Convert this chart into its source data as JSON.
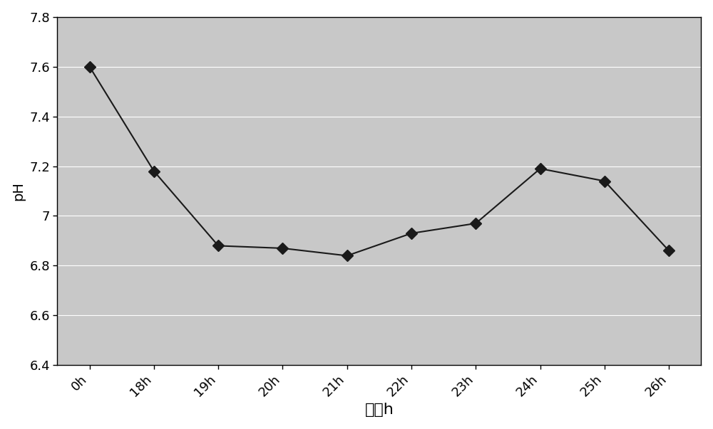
{
  "x_labels": [
    "0h",
    "18h",
    "19h",
    "20h",
    "21h",
    "22h",
    "23h",
    "24h",
    "25h",
    "26h"
  ],
  "x_positions": [
    0,
    1,
    2,
    3,
    4,
    5,
    6,
    7,
    8,
    9
  ],
  "y_values": [
    7.6,
    7.18,
    6.88,
    6.87,
    6.84,
    6.93,
    6.97,
    7.19,
    7.14,
    6.86
  ],
  "ylim": [
    6.4,
    7.8
  ],
  "yticks": [
    6.4,
    6.6,
    6.8,
    7.0,
    7.2,
    7.4,
    7.6,
    7.8
  ],
  "xlabel": "时间h",
  "ylabel": "pH",
  "line_color": "#1a1a1a",
  "marker": "D",
  "marker_size": 8,
  "marker_facecolor": "#1a1a1a",
  "linewidth": 1.5,
  "background_color": "#c8c8c8",
  "figure_bg": "#ffffff",
  "grid_color": "#ffffff",
  "xlabel_fontsize": 16,
  "ylabel_fontsize": 14,
  "tick_fontsize": 13,
  "ytick_labels": [
    "6.4",
    "6.6",
    "6.8",
    "7",
    "7.2",
    "7.4",
    "7.6",
    "7.8"
  ]
}
